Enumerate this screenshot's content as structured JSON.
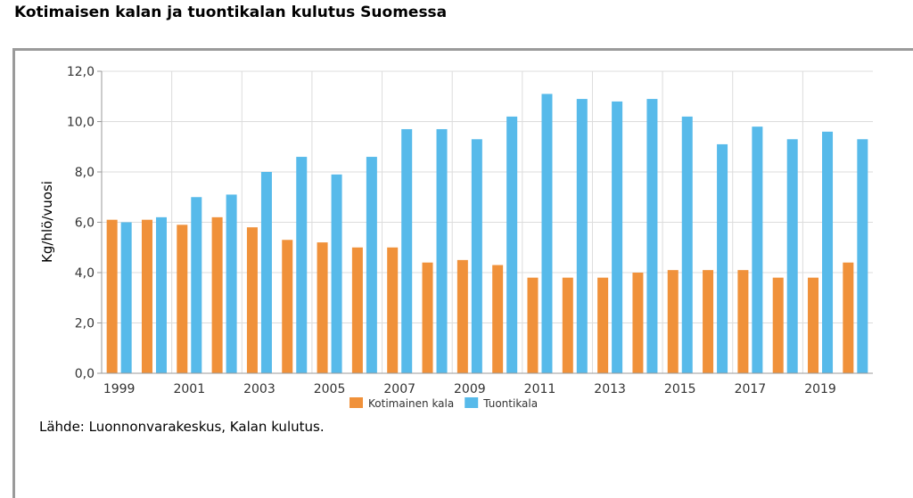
{
  "page": {
    "title": "Kotimaisen kalan ja tuontikalan kulutus Suomessa",
    "source": "Lähde: Luonnonvarakeskus, Kalan kulutus."
  },
  "chart_data": {
    "type": "bar",
    "ylabel": "Kg/hlö/vuosi",
    "ylim": [
      0,
      12
    ],
    "yticks": [
      "0,0",
      "2,0",
      "4,0",
      "6,0",
      "8,0",
      "10,0",
      "12,0"
    ],
    "x": [
      1999,
      2000,
      2001,
      2002,
      2003,
      2004,
      2005,
      2006,
      2007,
      2008,
      2009,
      2010,
      2011,
      2012,
      2013,
      2014,
      2015,
      2016,
      2017,
      2018,
      2019,
      2020
    ],
    "xtick_labels": [
      "1999",
      "2001",
      "2003",
      "2005",
      "2007",
      "2009",
      "2011",
      "2013",
      "2015",
      "2017",
      "2019"
    ],
    "grid": true,
    "legend_position": "bottom",
    "series": [
      {
        "name": "Kotimainen kala",
        "color": "#f0913a",
        "values": [
          6.1,
          6.1,
          5.9,
          6.2,
          5.8,
          5.3,
          5.2,
          5.0,
          5.0,
          4.4,
          4.5,
          4.3,
          3.8,
          3.8,
          3.8,
          4.0,
          4.1,
          4.1,
          4.1,
          3.8,
          3.8,
          4.4
        ]
      },
      {
        "name": "Tuontikala",
        "color": "#57baea",
        "values": [
          6.0,
          6.2,
          7.0,
          7.1,
          8.0,
          8.6,
          7.9,
          8.6,
          9.7,
          9.7,
          9.3,
          10.2,
          11.1,
          10.9,
          10.8,
          10.9,
          10.2,
          9.1,
          9.8,
          9.3,
          9.6,
          9.3
        ]
      }
    ]
  }
}
